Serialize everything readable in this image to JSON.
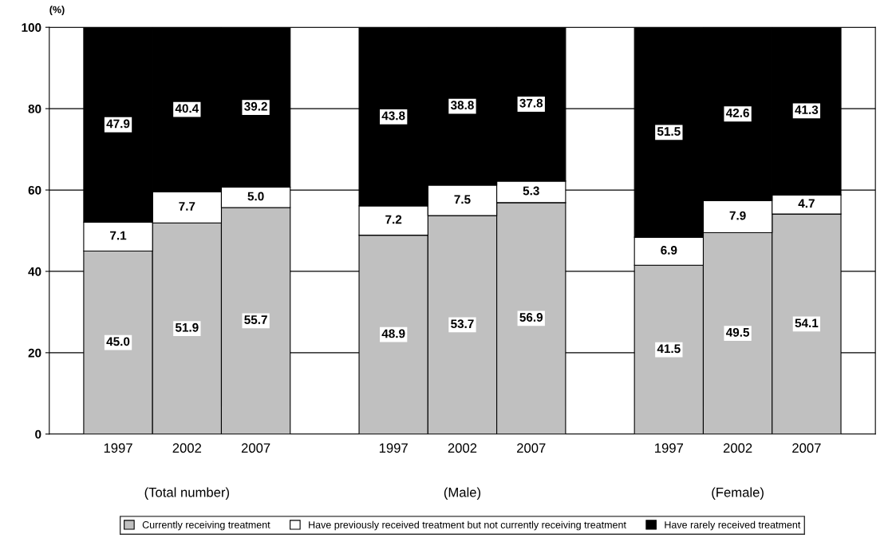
{
  "chart_data": {
    "type": "bar",
    "stacked": true,
    "ylabel": "(%)",
    "categories": [
      "1997",
      "2002",
      "2007",
      null,
      "1997",
      "2002",
      "2007",
      null,
      "1997",
      "2002",
      "2007"
    ],
    "series": [
      {
        "name": "Currently receiving treatment",
        "color": "#c0c0c0",
        "values": [
          45.0,
          51.9,
          55.7,
          null,
          48.9,
          53.7,
          56.9,
          null,
          41.5,
          49.5,
          54.1
        ],
        "value_labels": [
          "45.0",
          "51.9",
          "55.7",
          null,
          "48.9",
          "53.7",
          "56.9",
          null,
          "41.5",
          "49.5",
          "54.1"
        ]
      },
      {
        "name": "Have previously received treatment but not currently receiving treatment",
        "color": "#ffffff",
        "values": [
          7.1,
          7.7,
          5.0,
          null,
          7.2,
          7.5,
          5.3,
          null,
          6.9,
          7.9,
          4.7
        ],
        "value_labels": [
          "7.1",
          "7.7",
          "5.0",
          null,
          "7.2",
          "7.5",
          "5.3",
          null,
          "6.9",
          "7.9",
          "4.7"
        ]
      },
      {
        "name": "Have rarely received treatment",
        "color": "#000000",
        "values": [
          47.9,
          40.4,
          39.2,
          null,
          43.8,
          38.8,
          37.8,
          null,
          51.5,
          42.6,
          41.3
        ],
        "value_labels": [
          "47.9",
          "40.4",
          "39.2",
          null,
          "43.8",
          "38.8",
          "37.8",
          null,
          "51.5",
          "42.6",
          "41.3"
        ]
      }
    ],
    "annotations": [
      "(Total number)",
      "(Male)",
      "(Female)"
    ],
    "ylim": [
      0,
      100
    ],
    "yticks": [
      0,
      20,
      40,
      60,
      80,
      100
    ],
    "grid": "y",
    "legend": "bottom"
  }
}
